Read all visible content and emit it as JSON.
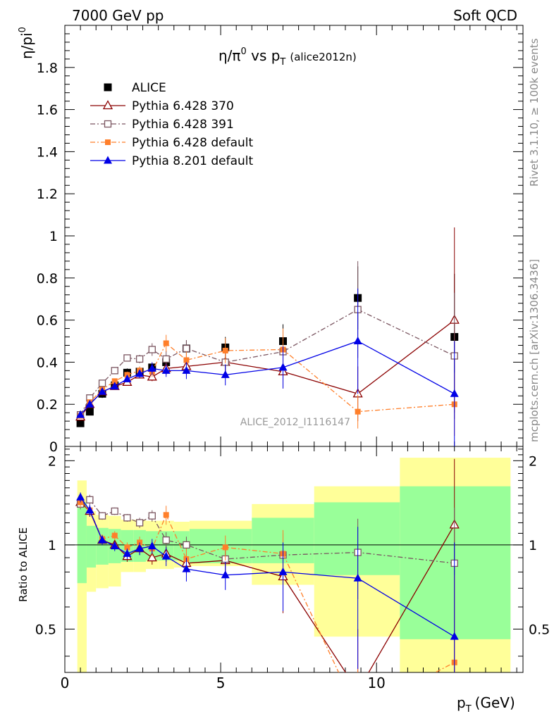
{
  "header": {
    "left": "7000 GeV pp",
    "right": "Soft QCD"
  },
  "side_labels": {
    "rivet": "Rivet 3.1.10, ≥ 100k events",
    "mcplots": "mcplots.cern.ch [arXiv:1306.3436]"
  },
  "watermark": "ALICE_2012_I1116147",
  "chart_data": {
    "type": "scatter",
    "title_main": "η/π",
    "title_sup": "0",
    "title_vs": " vs p",
    "title_sub": "T",
    "title_tag": "(alice2012n)",
    "ylabel_main": "η/pi",
    "ylabel_sup": "0",
    "ylabel_ratio": "Ratio to ALICE",
    "xlabel_main": "p",
    "xlabel_sub": "T",
    "xlabel_unit": "(GeV)",
    "xlim": [
      0,
      14.7
    ],
    "ylim_main": [
      0,
      2.0
    ],
    "ylim_ratio": [
      0.35,
      2.25
    ],
    "xticks": [
      0,
      5,
      10
    ],
    "yticks_main": [
      0,
      0.2,
      0.4,
      0.6,
      0.8,
      1,
      1.2,
      1.4,
      1.6,
      1.8
    ],
    "yticks_ratio": [
      0.5,
      1,
      2
    ],
    "legend": {
      "position": "top-left",
      "entries": [
        "ALICE",
        "Pythia 6.428 370",
        "Pythia 6.428 391",
        "Pythia 6.428 default",
        "Pythia 8.201 default"
      ]
    },
    "data": {
      "name": "ALICE",
      "x": [
        0.5,
        0.8,
        1.2,
        1.6,
        2.0,
        2.4,
        2.8,
        3.25,
        3.9,
        5.15,
        7.0,
        9.4,
        12.5
      ],
      "y": [
        0.11,
        0.165,
        0.25,
        0.29,
        0.35,
        0.355,
        0.375,
        0.4,
        0.465,
        0.47,
        0.5,
        0.705,
        0.52
      ],
      "err": [
        0.015,
        0.015,
        0.02,
        0.02,
        0.02,
        0.02,
        0.02,
        0.03,
        0.04,
        0.05,
        0.08,
        0.15,
        0.3
      ]
    },
    "band": {
      "x_edges": [
        0.4,
        0.7,
        1.0,
        1.4,
        1.8,
        2.2,
        2.6,
        3.0,
        3.5,
        4.0,
        6.0,
        8.0,
        10.75,
        14.3
      ],
      "stat_low": [
        0.73,
        0.83,
        0.85,
        0.86,
        0.87,
        0.87,
        0.88,
        0.88,
        0.88,
        0.86,
        0.86,
        0.78,
        0.46
      ],
      "stat_high": [
        1.42,
        1.17,
        1.15,
        1.14,
        1.13,
        1.13,
        1.12,
        1.12,
        1.12,
        1.14,
        1.25,
        1.42,
        1.62
      ],
      "tot_low": [
        0.35,
        0.68,
        0.7,
        0.71,
        0.8,
        0.8,
        0.82,
        0.82,
        0.83,
        0.84,
        0.72,
        0.47,
        0.35
      ],
      "tot_high": [
        1.7,
        1.32,
        1.28,
        1.27,
        1.23,
        1.23,
        1.22,
        1.22,
        1.21,
        1.22,
        1.4,
        1.62,
        2.05
      ]
    },
    "series": [
      {
        "name": "Pythia 6.428 370",
        "color": "#8b0000",
        "marker": "triangle-open",
        "dash": "",
        "x": [
          0.5,
          0.8,
          1.2,
          1.6,
          2.0,
          2.4,
          2.8,
          3.25,
          3.9,
          5.15,
          7.0,
          9.4,
          12.5
        ],
        "y": [
          0.14,
          0.2,
          0.26,
          0.285,
          0.305,
          0.34,
          0.33,
          0.37,
          0.38,
          0.4,
          0.355,
          0.25,
          0.6
        ],
        "err": [
          0.01,
          0.01,
          0.01,
          0.01,
          0.015,
          0.015,
          0.02,
          0.03,
          0.04,
          0.05,
          0.08,
          0.13,
          0.44
        ],
        "ratio": [
          1.42,
          1.32,
          1.04,
          1.0,
          0.91,
          0.97,
          0.9,
          0.93,
          0.86,
          0.88,
          0.77,
          0.3,
          1.18
        ],
        "ratio_err": [
          0.06,
          0.06,
          0.04,
          0.04,
          0.04,
          0.05,
          0.05,
          0.06,
          0.07,
          0.08,
          0.2,
          0.2,
          0.85
        ]
      },
      {
        "name": "Pythia 6.428 391",
        "color": "#7a5560",
        "marker": "square-open",
        "dash": "7,3,2,3",
        "x": [
          0.5,
          0.8,
          1.2,
          1.6,
          2.0,
          2.4,
          2.8,
          3.25,
          3.9,
          5.15,
          7.0,
          9.4,
          12.5
        ],
        "y": [
          0.15,
          0.23,
          0.3,
          0.36,
          0.42,
          0.415,
          0.46,
          0.415,
          0.465,
          0.4,
          0.45,
          0.65,
          0.43
        ],
        "err": [
          0.01,
          0.01,
          0.01,
          0.01,
          0.015,
          0.02,
          0.03,
          0.04,
          0.04,
          0.05,
          0.08,
          0.23,
          0.3
        ],
        "ratio": [
          1.4,
          1.45,
          1.27,
          1.32,
          1.25,
          1.2,
          1.27,
          1.04,
          1.0,
          0.89,
          0.92,
          0.94,
          0.86
        ],
        "ratio_err": [
          0.06,
          0.06,
          0.04,
          0.04,
          0.04,
          0.05,
          0.06,
          0.07,
          0.07,
          0.08,
          0.18,
          0.3,
          0.5
        ]
      },
      {
        "name": "Pythia 6.428 default",
        "color": "#ff7f2a",
        "marker": "square-filled",
        "dash": "7,3,2,3",
        "x": [
          0.5,
          0.8,
          1.2,
          1.6,
          2.0,
          2.4,
          2.8,
          3.25,
          3.9,
          5.15,
          7.0,
          9.4,
          12.5
        ],
        "y": [
          0.145,
          0.21,
          0.27,
          0.31,
          0.34,
          0.36,
          0.355,
          0.49,
          0.41,
          0.455,
          0.46,
          0.165,
          0.2
        ],
        "err": [
          0.01,
          0.01,
          0.01,
          0.01,
          0.015,
          0.02,
          0.025,
          0.04,
          0.04,
          0.06,
          0.1,
          0.08,
          0.15
        ],
        "ratio": [
          1.42,
          1.33,
          1.05,
          1.08,
          0.98,
          1.02,
          0.97,
          1.28,
          0.89,
          0.98,
          0.93,
          0.25,
          0.38
        ],
        "ratio_err": [
          0.06,
          0.06,
          0.04,
          0.04,
          0.04,
          0.05,
          0.06,
          0.1,
          0.08,
          0.1,
          0.2,
          0.2,
          0.4
        ]
      },
      {
        "name": "Pythia 8.201 default",
        "color": "#0000e6",
        "marker": "triangle-filled",
        "dash": "",
        "x": [
          0.5,
          0.8,
          1.2,
          1.6,
          2.0,
          2.4,
          2.8,
          3.25,
          3.9,
          5.15,
          7.0,
          9.4,
          12.5
        ],
        "y": [
          0.15,
          0.2,
          0.26,
          0.285,
          0.32,
          0.345,
          0.37,
          0.36,
          0.36,
          0.34,
          0.375,
          0.5,
          0.25
        ],
        "err": [
          0.01,
          0.01,
          0.01,
          0.01,
          0.015,
          0.02,
          0.03,
          0.03,
          0.04,
          0.05,
          0.1,
          0.25,
          0.25
        ],
        "ratio": [
          1.48,
          1.33,
          1.04,
          0.99,
          0.93,
          0.97,
          0.99,
          0.91,
          0.82,
          0.78,
          0.8,
          0.76,
          0.47
        ],
        "ratio_err": [
          0.06,
          0.06,
          0.04,
          0.04,
          0.04,
          0.05,
          0.06,
          0.07,
          0.08,
          0.09,
          0.22,
          0.4,
          0.55
        ]
      }
    ]
  }
}
